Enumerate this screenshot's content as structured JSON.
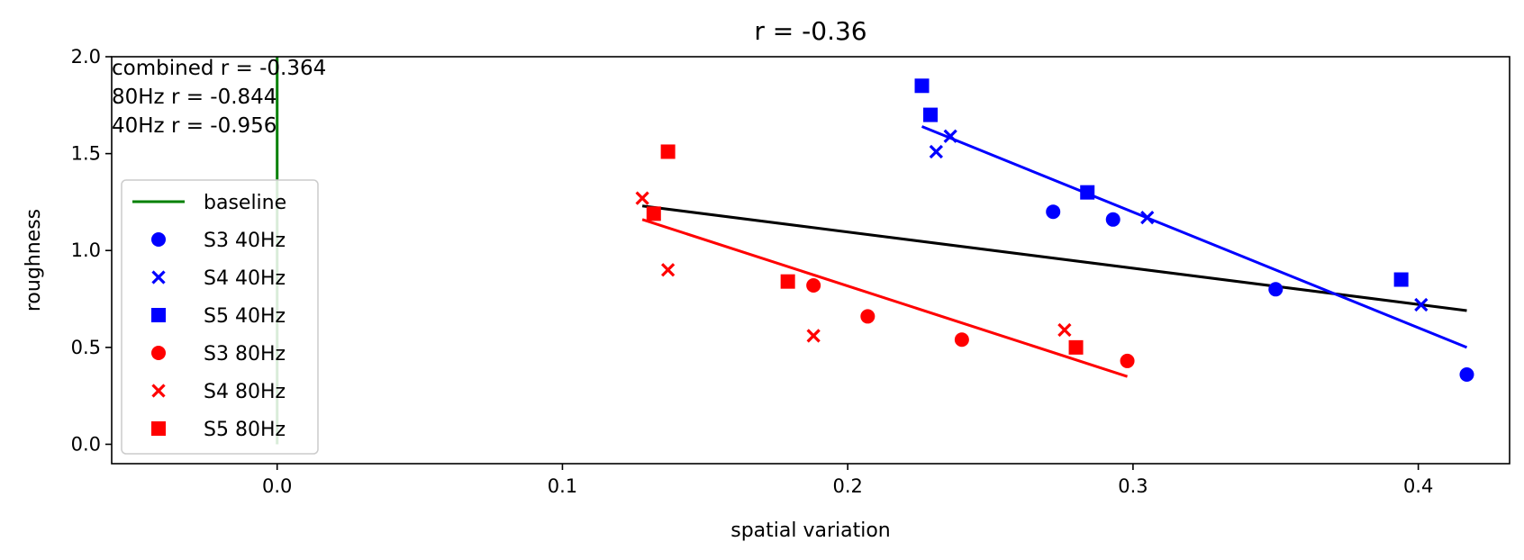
{
  "chart_data": {
    "type": "scatter",
    "title": "r = -0.36",
    "xlabel": "spatial variation",
    "ylabel": "roughness",
    "xlim": [
      -0.058,
      0.432
    ],
    "ylim": [
      -0.1,
      2.0
    ],
    "xticks": [
      0.0,
      0.1,
      0.2,
      0.3,
      0.4
    ],
    "xtick_labels": [
      "0.0",
      "0.1",
      "0.2",
      "0.3",
      "0.4"
    ],
    "yticks": [
      0.0,
      0.5,
      1.0,
      1.5,
      2.0
    ],
    "ytick_labels": [
      "0.0",
      "0.5",
      "1.0",
      "1.5",
      "2.0"
    ],
    "grid": false,
    "legend_position": "center-left",
    "annotations": [
      "combined r = -0.364",
      "80Hz r = -0.844",
      "40Hz r = -0.956"
    ],
    "baseline": {
      "name": "baseline",
      "color": "#008000",
      "x": [
        0.0,
        0.0
      ],
      "y": [
        0.0,
        2.0
      ]
    },
    "series": [
      {
        "name": "S3 40Hz",
        "marker": "circle",
        "color": "#0000ff",
        "x": [
          0.272,
          0.293,
          0.35,
          0.417
        ],
        "y": [
          1.2,
          1.16,
          0.8,
          0.36
        ]
      },
      {
        "name": "S4 40Hz",
        "marker": "x",
        "color": "#0000ff",
        "x": [
          0.231,
          0.236,
          0.305,
          0.401
        ],
        "y": [
          1.51,
          1.59,
          1.17,
          0.72
        ]
      },
      {
        "name": "S5 40Hz",
        "marker": "square",
        "color": "#0000ff",
        "x": [
          0.226,
          0.229,
          0.284,
          0.394
        ],
        "y": [
          1.85,
          1.7,
          1.3,
          0.85
        ]
      },
      {
        "name": "S3 80Hz",
        "marker": "circle",
        "color": "#ff0000",
        "x": [
          0.188,
          0.207,
          0.24,
          0.298
        ],
        "y": [
          0.82,
          0.66,
          0.54,
          0.43
        ]
      },
      {
        "name": "S4 80Hz",
        "marker": "x",
        "color": "#ff0000",
        "x": [
          0.128,
          0.137,
          0.188,
          0.276
        ],
        "y": [
          1.27,
          0.9,
          0.56,
          0.59
        ]
      },
      {
        "name": "S5 80Hz",
        "marker": "square",
        "color": "#ff0000",
        "x": [
          0.132,
          0.137,
          0.179,
          0.28
        ],
        "y": [
          1.19,
          1.51,
          0.84,
          0.5
        ]
      }
    ],
    "fit_lines": [
      {
        "group": "combined",
        "color": "#000000",
        "x": [
          0.128,
          0.417
        ],
        "y": [
          1.23,
          0.69
        ]
      },
      {
        "group": "40Hz",
        "color": "#0000ff",
        "x": [
          0.226,
          0.417
        ],
        "y": [
          1.64,
          0.5
        ]
      },
      {
        "group": "80Hz",
        "color": "#ff0000",
        "x": [
          0.128,
          0.298
        ],
        "y": [
          1.16,
          0.35
        ]
      }
    ]
  }
}
